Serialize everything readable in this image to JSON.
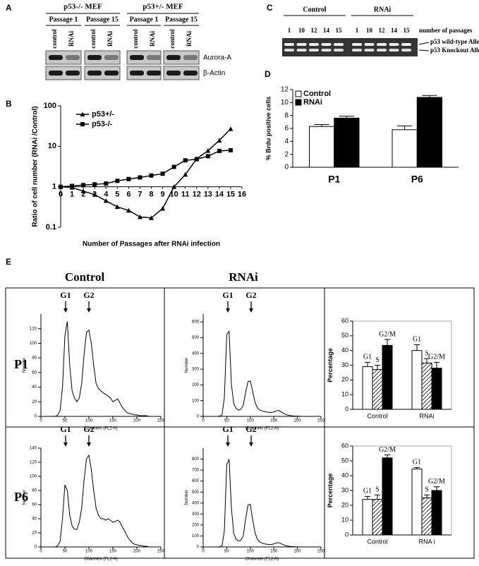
{
  "panels": {
    "A": {
      "label": "A",
      "groups": [
        {
          "name": "p53-/- MEF",
          "passages": [
            "Passage 1",
            "Passage 15"
          ]
        },
        {
          "name": "p53+/- MEF",
          "passages": [
            "Passage 1",
            "Passage 15"
          ]
        }
      ],
      "lanes": [
        "control",
        "RNAi"
      ],
      "rows": [
        "Aurora-A",
        "β-Actin"
      ]
    },
    "B": {
      "label": "B"
    },
    "C": {
      "label": "C",
      "groups": [
        "Control",
        "RNAi"
      ],
      "lanes": [
        "1",
        "10",
        "12",
        "14",
        "15"
      ],
      "lanes_caption": "number of passages",
      "bands": [
        "p53 wild-type Allele",
        "p53 Knockout Allele"
      ]
    },
    "D": {
      "label": "D"
    },
    "E": {
      "label": "E",
      "columns": [
        "Control",
        "RNAi"
      ],
      "rows": [
        "P1",
        "P6"
      ]
    }
  },
  "chart_data": [
    {
      "type": "line",
      "xlabel": "Number of Passages after RNAi infection",
      "ylabel": "Ratio of cell number (RNAi /Control)",
      "x": [
        0,
        1,
        2,
        3,
        4,
        5,
        6,
        7,
        8,
        9,
        10,
        11,
        12,
        13,
        14,
        15
      ],
      "series": [
        {
          "name": "p53+/-",
          "marker": "triangle",
          "color": "#000000",
          "values": [
            1,
            0.96,
            0.78,
            0.64,
            0.45,
            0.32,
            0.26,
            0.18,
            0.17,
            0.29,
            1.0,
            2.0,
            4.9,
            7.8,
            14,
            27
          ]
        },
        {
          "name": "p53-/-",
          "marker": "square",
          "color": "#000000",
          "values": [
            1,
            1.05,
            1.1,
            1.15,
            1.2,
            1.4,
            1.55,
            1.7,
            1.9,
            2.1,
            3.1,
            4.5,
            4.8,
            5.7,
            7.7,
            8.0
          ]
        }
      ],
      "xlim": [
        0,
        16
      ],
      "xticks": [
        0,
        1,
        2,
        3,
        4,
        5,
        6,
        7,
        8,
        9,
        10,
        11,
        12,
        13,
        14,
        15,
        16
      ],
      "ylim": [
        0.1,
        100
      ],
      "yticks": [
        0.1,
        1,
        10,
        100
      ],
      "log_y": true,
      "x_axis_crosses": 1,
      "legend": "upper-left"
    },
    {
      "type": "bar",
      "ylabel": "% Brdu positive cells",
      "categories": [
        "P1",
        "P6"
      ],
      "series": [
        {
          "name": "Control",
          "color": "#ffffff",
          "values": [
            6.3,
            5.8
          ],
          "errors": [
            0.3,
            0.6
          ]
        },
        {
          "name": "RNAi",
          "color": "#000000",
          "values": [
            7.6,
            10.8
          ],
          "errors": [
            0.3,
            0.3
          ]
        }
      ],
      "ylim": [
        0,
        12
      ],
      "yticks": [
        0,
        2,
        4,
        6,
        8,
        10,
        12
      ],
      "legend": "upper-left"
    },
    {
      "type": "line",
      "xlabel": "Channels (FL2-A)",
      "ylabel": "Number",
      "annotations": [
        "G1",
        "G2"
      ],
      "color": "#000000",
      "x": [
        0,
        5,
        10,
        15,
        20,
        25,
        30,
        35,
        40,
        45,
        50,
        55,
        60,
        65,
        70,
        75,
        80,
        85,
        90,
        95,
        100,
        105,
        110,
        115,
        120,
        125,
        130,
        135,
        140,
        145,
        150,
        155,
        160,
        165,
        170,
        175,
        180,
        185,
        190,
        195,
        200,
        205,
        210,
        215,
        220,
        225,
        230,
        235,
        240,
        245,
        250
      ],
      "values": [
        0,
        0,
        0,
        0,
        0,
        0,
        0,
        2,
        8,
        40,
        110,
        130,
        70,
        35,
        25,
        20,
        25,
        45,
        85,
        115,
        118,
        100,
        70,
        45,
        38,
        35,
        32,
        30,
        28,
        25,
        20,
        22,
        24,
        18,
        12,
        8,
        5,
        4,
        3,
        2,
        2,
        1,
        1,
        1,
        1,
        0,
        0,
        0,
        0,
        0,
        0
      ],
      "xlim": [
        0,
        250
      ],
      "xticks": [
        0,
        50,
        100,
        150,
        200,
        250
      ],
      "ylim": [
        0,
        140
      ],
      "yticks": [
        0,
        20,
        40,
        60,
        80,
        100,
        120
      ]
    },
    {
      "type": "line",
      "xlabel": "Channels (FL2-A)",
      "ylabel": "Number",
      "annotations": [
        "G1",
        "G2"
      ],
      "color": "#000000",
      "x": [
        0,
        5,
        10,
        15,
        20,
        25,
        30,
        35,
        40,
        45,
        50,
        55,
        60,
        65,
        70,
        75,
        80,
        85,
        90,
        95,
        100,
        105,
        110,
        115,
        120,
        125,
        130,
        135,
        140,
        145,
        150,
        155,
        160,
        165,
        170,
        175,
        180,
        185,
        190,
        195,
        200,
        205,
        210,
        215,
        220,
        225,
        230,
        235,
        240,
        245,
        250
      ],
      "values": [
        0,
        0,
        0,
        0,
        0,
        0,
        0,
        2,
        10,
        120,
        520,
        540,
        200,
        80,
        50,
        40,
        45,
        70,
        150,
        220,
        225,
        160,
        90,
        55,
        40,
        35,
        30,
        28,
        25,
        25,
        28,
        35,
        38,
        30,
        20,
        12,
        8,
        5,
        3,
        2,
        1,
        1,
        0,
        0,
        0,
        0,
        0,
        0,
        0,
        0,
        0
      ],
      "xlim": [
        0,
        250
      ],
      "xticks": [
        0,
        50,
        100,
        150,
        200,
        250
      ],
      "ylim": [
        0,
        650
      ],
      "yticks": [
        0,
        100,
        200,
        300,
        400,
        500,
        600
      ]
    },
    {
      "type": "line",
      "xlabel": "Channels (FL2-A)",
      "ylabel": "Number",
      "annotations": [
        "G1",
        "G2"
      ],
      "color": "#000000",
      "x": [
        0,
        5,
        10,
        15,
        20,
        25,
        30,
        35,
        40,
        45,
        50,
        55,
        60,
        65,
        70,
        75,
        80,
        85,
        90,
        95,
        100,
        105,
        110,
        115,
        120,
        125,
        130,
        135,
        140,
        145,
        150,
        155,
        160,
        165,
        170,
        175,
        180,
        185,
        190,
        195,
        200,
        205,
        210,
        215,
        220,
        225,
        230,
        235,
        240,
        245,
        250
      ],
      "values": [
        0,
        0,
        0,
        0,
        0,
        0,
        0,
        2,
        8,
        40,
        88,
        80,
        45,
        30,
        25,
        25,
        35,
        55,
        95,
        125,
        130,
        110,
        80,
        55,
        45,
        40,
        40,
        38,
        40,
        38,
        35,
        36,
        38,
        35,
        28,
        22,
        15,
        10,
        6,
        4,
        3,
        2,
        2,
        1,
        1,
        0,
        0,
        0,
        0,
        0,
        0
      ],
      "xlim": [
        0,
        250
      ],
      "xticks": [
        0,
        50,
        100,
        150,
        200,
        250
      ],
      "ylim": [
        0,
        140
      ],
      "yticks": [
        0,
        20,
        40,
        60,
        80,
        100,
        120,
        140
      ]
    },
    {
      "type": "line",
      "xlabel": "Channels (FL2-A)",
      "ylabel": "Number",
      "annotations": [
        "G1",
        "G2"
      ],
      "color": "#000000",
      "x": [
        0,
        5,
        10,
        15,
        20,
        25,
        30,
        35,
        40,
        45,
        50,
        55,
        60,
        65,
        70,
        75,
        80,
        85,
        90,
        95,
        100,
        105,
        110,
        115,
        120,
        125,
        130,
        135,
        140,
        145,
        150,
        155,
        160,
        165,
        170,
        175,
        180,
        185,
        190,
        195,
        200,
        205,
        210,
        215,
        220,
        225,
        230,
        235,
        240,
        245,
        250
      ],
      "values": [
        0,
        0,
        0,
        0,
        0,
        0,
        0,
        2,
        10,
        150,
        750,
        800,
        350,
        120,
        70,
        55,
        60,
        100,
        250,
        380,
        390,
        250,
        130,
        70,
        45,
        35,
        28,
        25,
        22,
        22,
        28,
        35,
        40,
        30,
        20,
        12,
        8,
        5,
        3,
        2,
        1,
        1,
        0,
        0,
        0,
        0,
        0,
        0,
        0,
        0,
        0
      ],
      "xlim": [
        0,
        250
      ],
      "xticks": [
        0,
        50,
        100,
        150,
        200,
        250
      ],
      "ylim": [
        0,
        900
      ],
      "yticks": [
        0,
        100,
        200,
        300,
        400,
        500,
        600,
        700,
        800
      ]
    },
    {
      "type": "bar",
      "ylabel": "Percentage",
      "categories": [
        "Control",
        "RNAi"
      ],
      "series_labels": "above-bars",
      "series": [
        {
          "name": "G1",
          "color": "#ffffff",
          "values": [
            29,
            40
          ],
          "errors": [
            3,
            4
          ]
        },
        {
          "name": "S",
          "color": "#555555",
          "pattern": "hatch",
          "values": [
            27,
            31.5
          ],
          "errors": [
            3,
            3
          ]
        },
        {
          "name": "G2/M",
          "color": "#000000",
          "values": [
            43.5,
            28
          ],
          "errors": [
            4,
            4
          ]
        }
      ],
      "ylim": [
        0,
        60
      ],
      "yticks": [
        0,
        10,
        20,
        30,
        40,
        50,
        60
      ]
    },
    {
      "type": "bar",
      "ylabel": "Percentage",
      "categories": [
        "Control",
        "RNA i"
      ],
      "series_labels": "above-bars",
      "series": [
        {
          "name": "G1",
          "color": "#ffffff",
          "values": [
            24,
            44.5
          ],
          "errors": [
            2,
            1
          ]
        },
        {
          "name": "S",
          "color": "#555555",
          "pattern": "hatch",
          "values": [
            24,
            25
          ],
          "errors": [
            3,
            2
          ]
        },
        {
          "name": "G2/M",
          "color": "#000000",
          "values": [
            52,
            30
          ],
          "errors": [
            2,
            2.5
          ]
        }
      ],
      "ylim": [
        0,
        60
      ],
      "yticks": [
        0,
        10,
        20,
        30,
        40,
        50,
        60
      ]
    }
  ]
}
